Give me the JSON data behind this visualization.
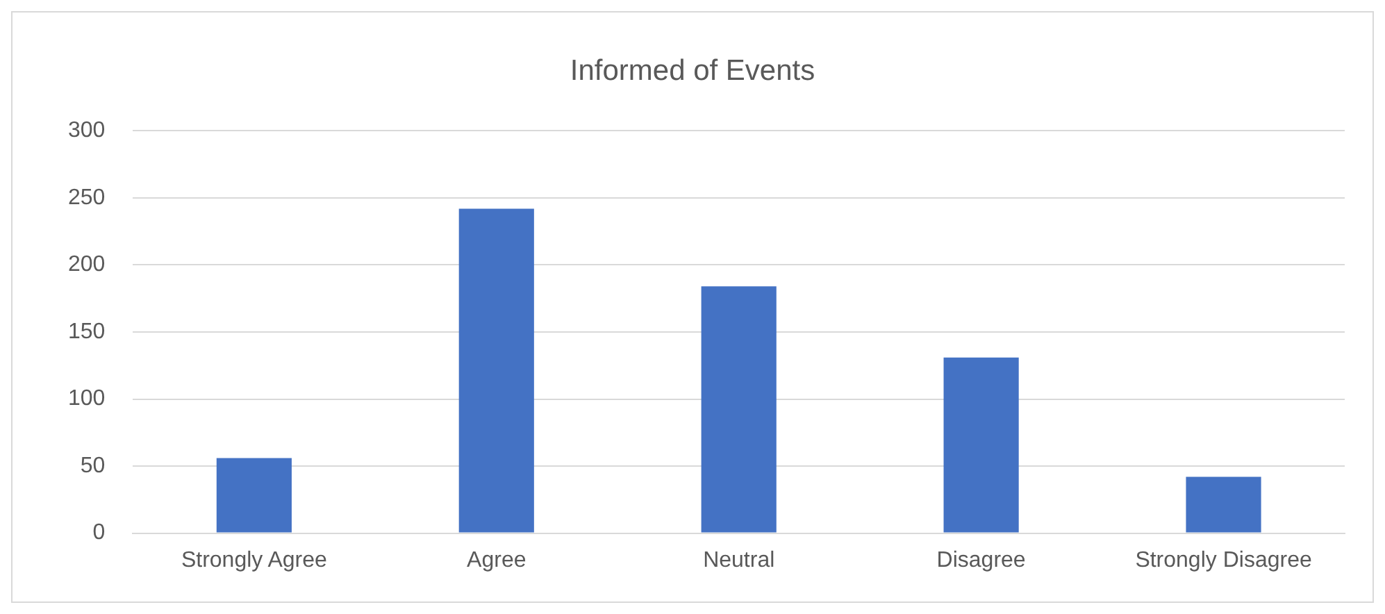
{
  "chart_data": {
    "type": "bar",
    "title": "Informed of Events",
    "categories": [
      "Strongly Agree",
      "Agree",
      "Neutral",
      "Disagree",
      "Strongly Disagree"
    ],
    "values": [
      56,
      242,
      184,
      131,
      42
    ],
    "color": "#4472c4",
    "ylim": [
      0,
      300
    ],
    "yticks": [
      0,
      50,
      100,
      150,
      200,
      250,
      300
    ],
    "grid": "y"
  }
}
